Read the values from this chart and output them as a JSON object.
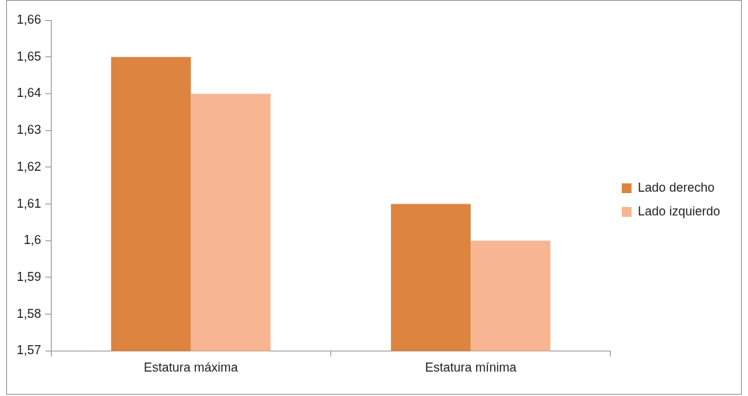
{
  "chart_data": {
    "type": "bar",
    "categories": [
      "Estatura máxima",
      "Estatura mínima"
    ],
    "series": [
      {
        "name": "Lado derecho",
        "color": "#dd8440",
        "values": [
          1.65,
          1.61
        ]
      },
      {
        "name": "Lado izquierdo",
        "color": "#f8b592",
        "values": [
          1.64,
          1.6
        ]
      }
    ],
    "ylim": [
      1.57,
      1.66
    ],
    "yticks": [
      {
        "value": 1.57,
        "label": "1,57"
      },
      {
        "value": 1.58,
        "label": "1,58"
      },
      {
        "value": 1.59,
        "label": "1,59"
      },
      {
        "value": 1.6,
        "label": "1,6"
      },
      {
        "value": 1.61,
        "label": "1,61"
      },
      {
        "value": 1.62,
        "label": "1,62"
      },
      {
        "value": 1.63,
        "label": "1,63"
      },
      {
        "value": 1.64,
        "label": "1,64"
      },
      {
        "value": 1.65,
        "label": "1,65"
      },
      {
        "value": 1.66,
        "label": "1,66"
      }
    ],
    "grid": false,
    "legend": "right"
  }
}
